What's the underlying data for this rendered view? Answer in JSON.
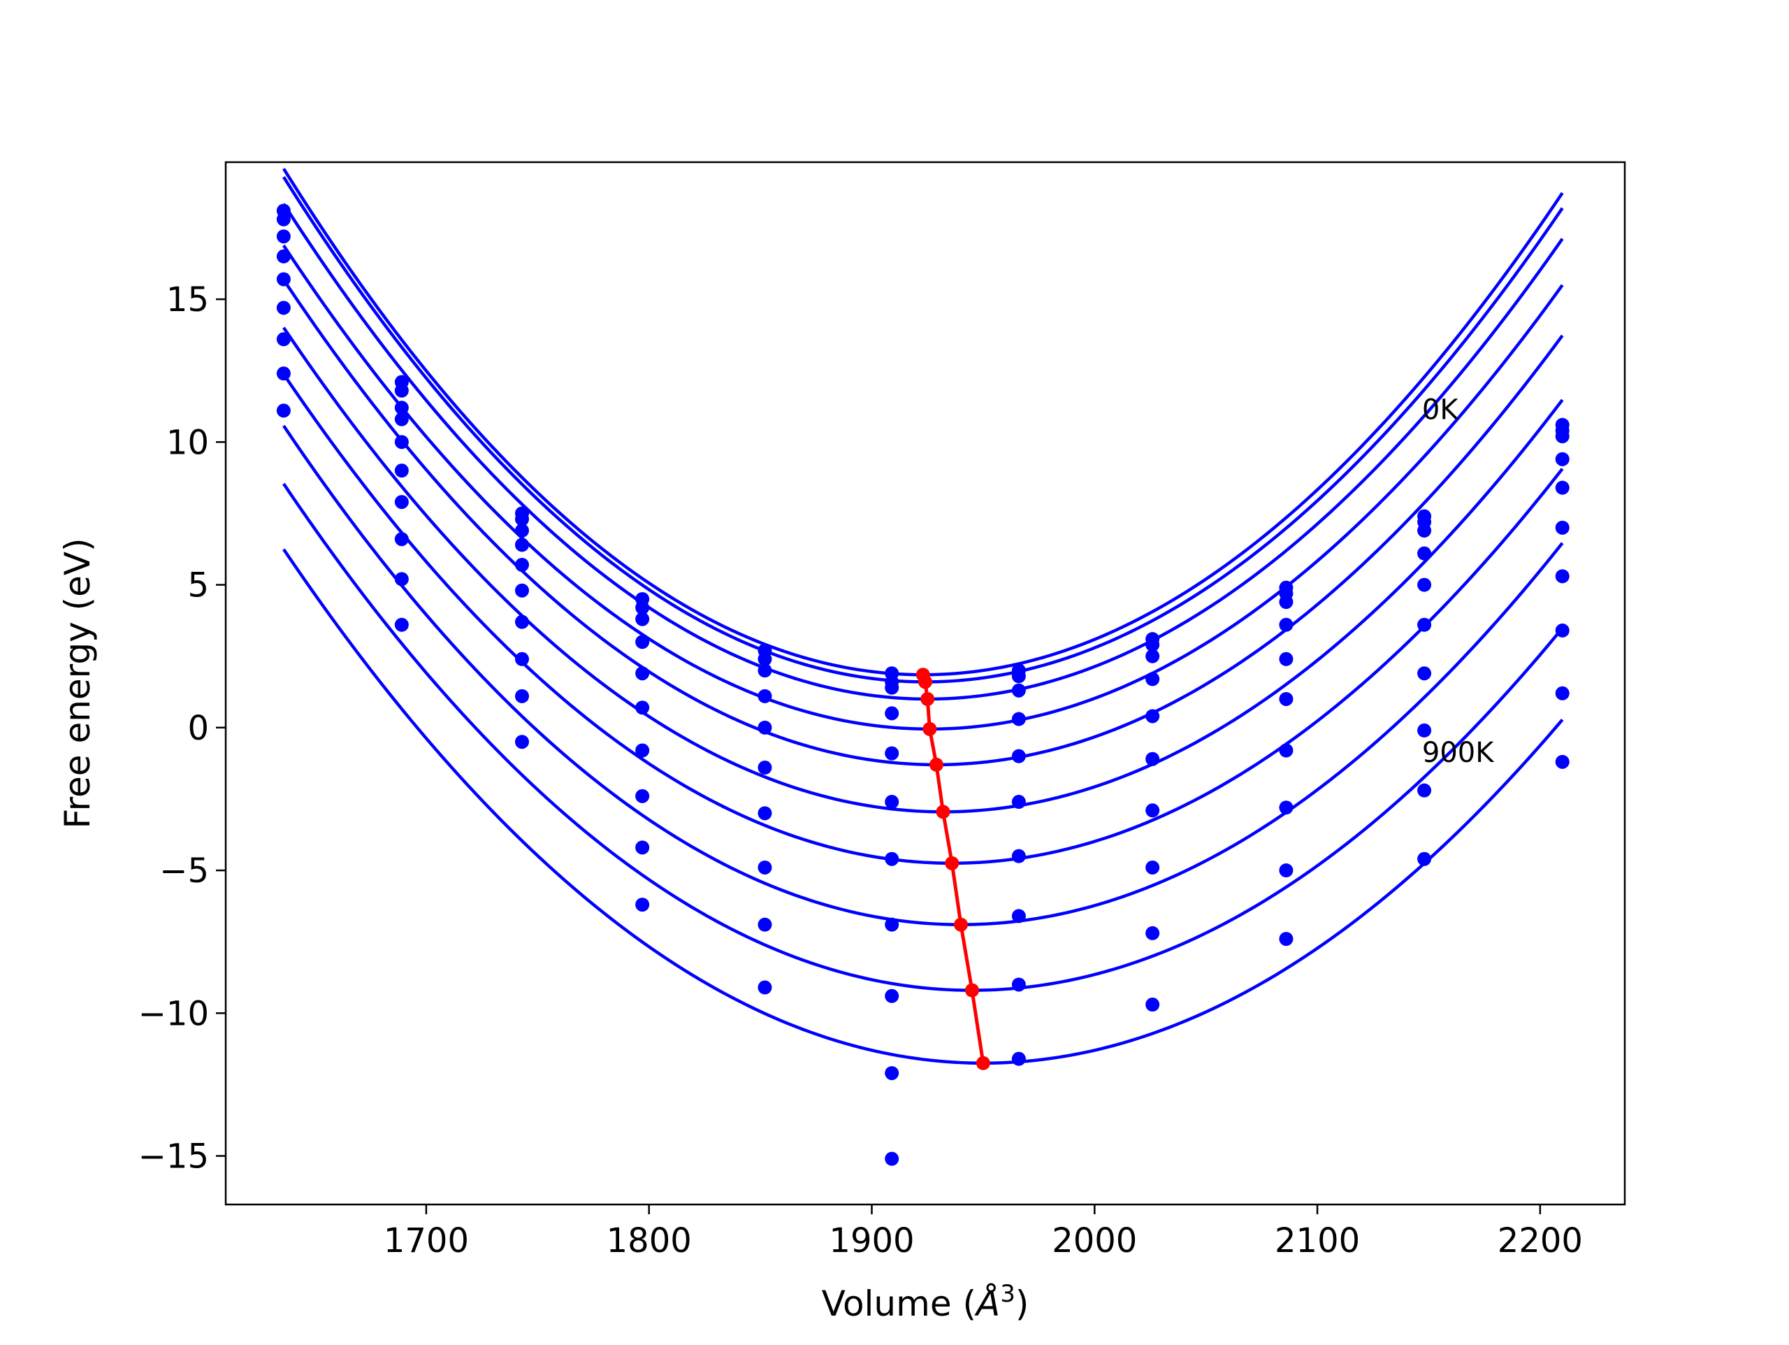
{
  "chart_data": {
    "type": "scatter",
    "title": "",
    "xlabel_main": "Volume (",
    "xlabel_unit_base": "Å",
    "xlabel_unit_exp": "3",
    "xlabel_close": ")",
    "ylabel": "Free energy (eV)",
    "xlim": [
      1610,
      2238
    ],
    "ylim": [
      -16.7,
      19.8
    ],
    "xticks": [
      {
        "value": 1700,
        "label": "1700"
      },
      {
        "value": 1800,
        "label": "1800"
      },
      {
        "value": 1900,
        "label": "1900"
      },
      {
        "value": 2000,
        "label": "2000"
      },
      {
        "value": 2100,
        "label": "2100"
      },
      {
        "value": 2200,
        "label": "2200"
      }
    ],
    "yticks": [
      {
        "value": 15,
        "label": "15"
      },
      {
        "value": 10,
        "label": "10"
      },
      {
        "value": 5,
        "label": "5"
      },
      {
        "value": 0,
        "label": "0"
      },
      {
        "value": -5,
        "label": "−5"
      },
      {
        "value": -10,
        "label": "−10"
      },
      {
        "value": -15,
        "label": "−15"
      }
    ],
    "annotations": [
      {
        "text": "0K",
        "x": 2147,
        "y": 10.8
      },
      {
        "text": "900K",
        "x": 2147,
        "y": -1.2
      }
    ],
    "volumes": [
      1636,
      1689,
      1743,
      1797,
      1852,
      1909,
      1966,
      2026,
      2086,
      2148,
      2210
    ],
    "series": [
      {
        "values": [
          18.1,
          12.1,
          7.5,
          4.5,
          2.7,
          1.9,
          2.0,
          3.1,
          4.9,
          7.4,
          10.6
        ]
      },
      {
        "values": [
          17.8,
          11.8,
          7.3,
          4.2,
          2.4,
          1.6,
          1.8,
          2.9,
          4.7,
          7.2,
          10.4
        ]
      },
      {
        "values": [
          17.2,
          11.2,
          6.9,
          3.8,
          2.0,
          1.4,
          1.3,
          2.5,
          4.4,
          6.9,
          10.2
        ]
      },
      {
        "values": [
          16.5,
          10.8,
          6.4,
          3.0,
          1.1,
          0.5,
          0.3,
          1.7,
          3.6,
          6.1,
          9.4
        ]
      },
      {
        "values": [
          15.7,
          10.0,
          5.7,
          1.9,
          0.0,
          -0.9,
          -1.0,
          0.4,
          2.4,
          5.0,
          8.4
        ]
      },
      {
        "values": [
          14.7,
          9.0,
          4.8,
          0.7,
          -1.4,
          -2.6,
          -2.6,
          -1.1,
          1.0,
          3.6,
          7.0
        ]
      },
      {
        "values": [
          13.6,
          7.9,
          3.7,
          -0.8,
          -3.0,
          -4.6,
          -4.5,
          -2.9,
          -0.8,
          1.9,
          5.3
        ]
      },
      {
        "values": [
          12.4,
          6.6,
          2.4,
          -2.4,
          -4.9,
          -6.9,
          -6.6,
          -4.9,
          -2.8,
          -0.1,
          3.4
        ]
      },
      {
        "values": [
          11.1,
          5.2,
          1.1,
          -4.2,
          -6.9,
          -9.4,
          -9.0,
          -7.2,
          -5.0,
          -2.2,
          1.2
        ]
      },
      {
        "values": [
          null,
          3.6,
          -0.5,
          -6.2,
          -9.1,
          -12.1,
          -11.6,
          -9.7,
          -7.4,
          -4.6,
          -1.2
        ]
      },
      {
        "values": [
          null,
          null,
          null,
          null,
          null,
          -15.1,
          null,
          null,
          null,
          null,
          null
        ]
      }
    ],
    "fits": [
      {
        "v0": 1923,
        "e0": 1.85,
        "a": 0.00021,
        "b": 1.8e-08,
        "x_start": 1636,
        "x_end": 2210
      },
      {
        "v0": 1924,
        "e0": 1.6,
        "a": 0.000208,
        "b": 1.8e-08,
        "x_start": 1636,
        "x_end": 2210
      },
      {
        "v0": 1925,
        "e0": 1.0,
        "a": 0.000203,
        "b": 1.6e-08,
        "x_start": 1636,
        "x_end": 2210
      },
      {
        "v0": 1926,
        "e0": -0.05,
        "a": 0.000197,
        "b": 1.5e-08,
        "x_start": 1636,
        "x_end": 2210
      },
      {
        "v0": 1929,
        "e0": -1.3,
        "a": 0.000194,
        "b": 1.3e-08,
        "x_start": 1636,
        "x_end": 2210
      },
      {
        "v0": 1932,
        "e0": -2.95,
        "a": 0.00019,
        "b": 1.2e-08,
        "x_start": 1636,
        "x_end": 2210
      },
      {
        "v0": 1936,
        "e0": -4.75,
        "a": 0.000187,
        "b": 1.1e-08,
        "x_start": 1636,
        "x_end": 2210
      },
      {
        "v0": 1940,
        "e0": -6.9,
        "a": 0.000186,
        "b": 1e-08,
        "x_start": 1636,
        "x_end": 2210
      },
      {
        "v0": 1945,
        "e0": -9.2,
        "a": 0.000183,
        "b": 9e-09,
        "x_start": 1636,
        "x_end": 2210
      },
      {
        "v0": 1950,
        "e0": -11.75,
        "a": 0.00018,
        "b": 8e-09,
        "x_start": 1636,
        "x_end": 2210
      }
    ],
    "minima": [
      {
        "x": 1923,
        "y": 1.85
      },
      {
        "x": 1924,
        "y": 1.6
      },
      {
        "x": 1925,
        "y": 1.0
      },
      {
        "x": 1926,
        "y": -0.05
      },
      {
        "x": 1929,
        "y": -1.3
      },
      {
        "x": 1932,
        "y": -2.95
      },
      {
        "x": 1936,
        "y": -4.75
      },
      {
        "x": 1940,
        "y": -6.9
      },
      {
        "x": 1945,
        "y": -9.2
      },
      {
        "x": 1950,
        "y": -11.75
      }
    ],
    "colors": {
      "curves": "#0000ff",
      "points": "#0000ff",
      "minima": "#ff0000",
      "axes": "#000000"
    }
  }
}
